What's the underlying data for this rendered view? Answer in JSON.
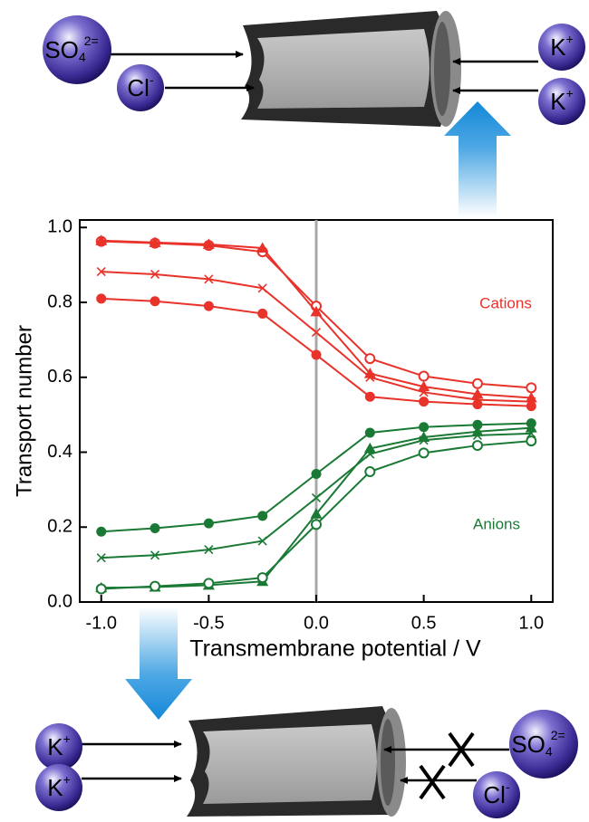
{
  "chart_data": {
    "type": "line",
    "xlabel": "Transmembrane potential / V",
    "ylabel": "Transport number",
    "x": [
      -1.0,
      -0.75,
      -0.5,
      -0.25,
      0.0,
      0.25,
      0.5,
      0.75,
      1.0
    ],
    "series": [
      {
        "color": "#e8322a",
        "marker": "open-circle",
        "values": [
          0.963,
          0.958,
          0.952,
          0.935,
          0.79,
          0.65,
          0.603,
          0.583,
          0.572
        ]
      },
      {
        "color": "#e8322a",
        "marker": "triangle",
        "values": [
          0.965,
          0.96,
          0.955,
          0.945,
          0.775,
          0.61,
          0.575,
          0.555,
          0.545
        ]
      },
      {
        "color": "#e8322a",
        "marker": "cross",
        "values": [
          0.882,
          0.875,
          0.862,
          0.838,
          0.72,
          0.6,
          0.56,
          0.54,
          0.535
        ]
      },
      {
        "color": "#e8322a",
        "marker": "filled-circle",
        "values": [
          0.81,
          0.803,
          0.79,
          0.77,
          0.66,
          0.548,
          0.535,
          0.528,
          0.523
        ]
      },
      {
        "color": "#1a7a35",
        "marker": "filled-circle",
        "values": [
          0.188,
          0.197,
          0.21,
          0.23,
          0.342,
          0.452,
          0.467,
          0.473,
          0.477
        ]
      },
      {
        "color": "#1a7a35",
        "marker": "cross",
        "values": [
          0.118,
          0.125,
          0.14,
          0.163,
          0.278,
          0.395,
          0.432,
          0.445,
          0.45
        ]
      },
      {
        "color": "#1a7a35",
        "marker": "triangle",
        "values": [
          0.038,
          0.04,
          0.045,
          0.055,
          0.235,
          0.41,
          0.44,
          0.455,
          0.465
        ]
      },
      {
        "color": "#1a7a35",
        "marker": "open-circle",
        "values": [
          0.035,
          0.042,
          0.05,
          0.065,
          0.207,
          0.348,
          0.398,
          0.418,
          0.43
        ]
      }
    ],
    "annotations": [
      {
        "text": "Cations",
        "color": "#e8322a"
      },
      {
        "text": "Anions",
        "color": "#1a7a35"
      }
    ],
    "vline": 0.0,
    "vline_color": "#a8a8a8",
    "xlim": [
      -1.1,
      1.1
    ],
    "ylim": [
      0,
      1.02
    ],
    "xticks": [
      {
        "value": -1.0,
        "label": "-1.0"
      },
      -0.5,
      {
        "value": 0.0,
        "label": "0.0"
      },
      0.5,
      {
        "value": 1.0,
        "label": "1.0"
      }
    ],
    "yticks": [
      {
        "value": 0.0,
        "label": "0.0"
      },
      0.2,
      0.4,
      0.6,
      0.8,
      {
        "value": 1.0,
        "label": "1.0"
      }
    ]
  },
  "diagram": {
    "top": {
      "ions": [
        {
          "base": "SO",
          "sub": "4",
          "sup": "2="
        },
        {
          "base": "Cl",
          "sup": "-"
        },
        {
          "base": "K",
          "sup": "+"
        },
        {
          "base": "K",
          "sup": "+"
        }
      ]
    },
    "bottom": {
      "ions": [
        {
          "base": "K",
          "sup": "+"
        },
        {
          "base": "K",
          "sup": "+"
        },
        {
          "base": "SO",
          "sub": "4",
          "sup": "2="
        },
        {
          "base": "Cl",
          "sup": "-"
        }
      ]
    }
  }
}
